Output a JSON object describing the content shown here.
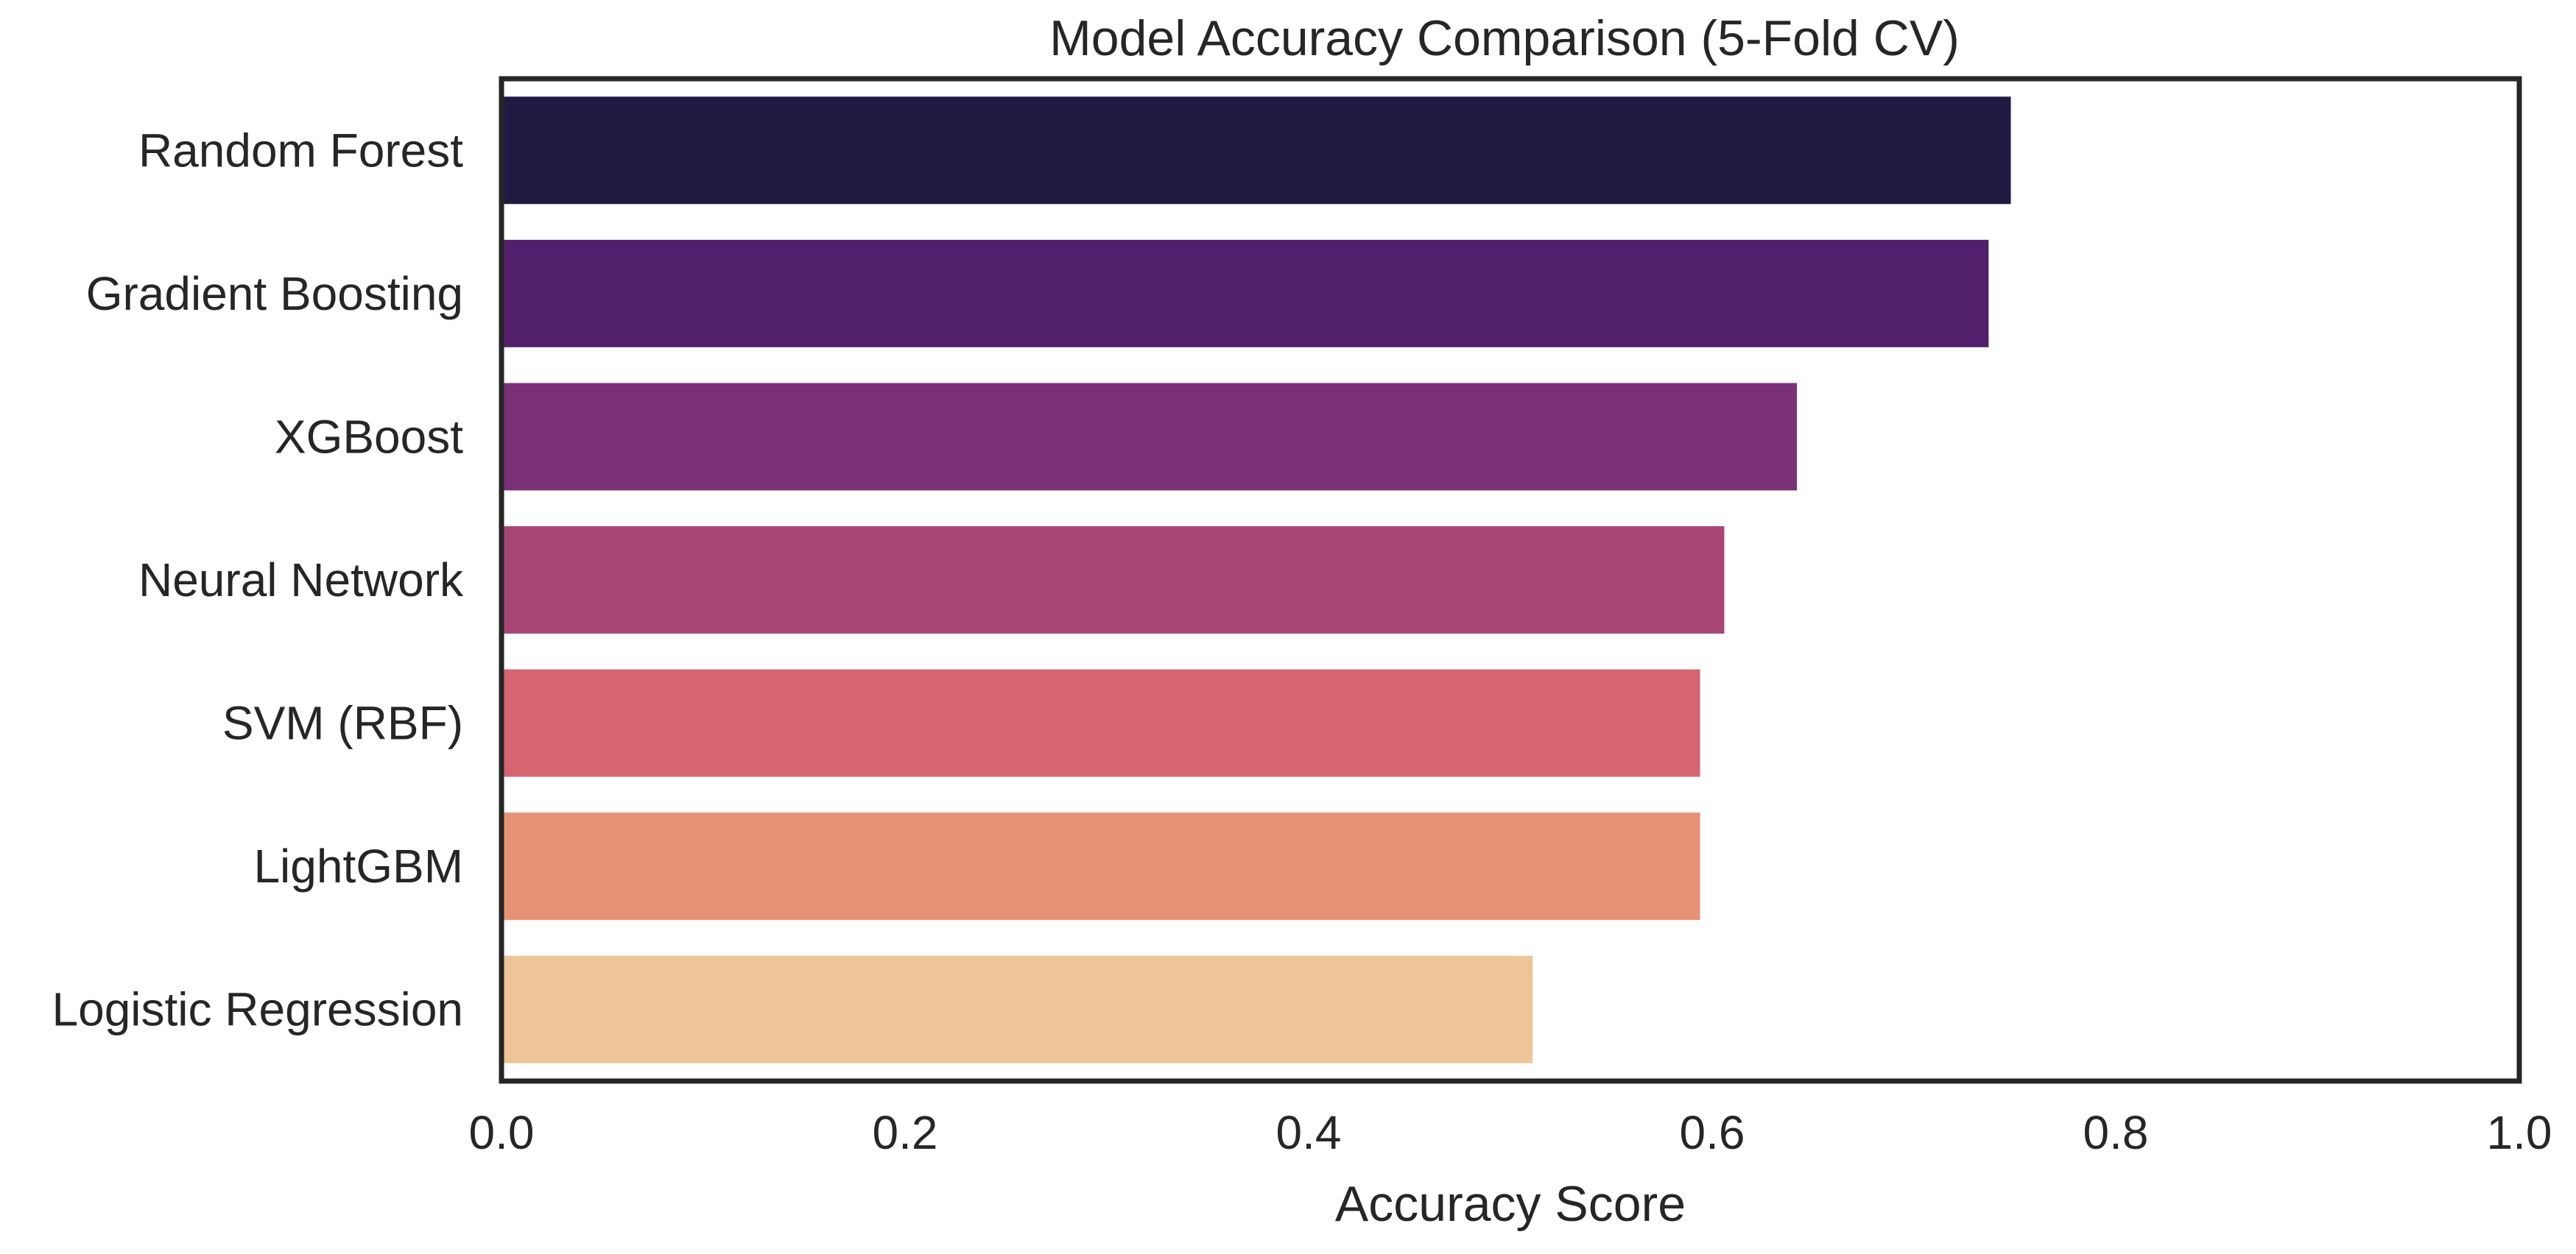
{
  "chart_data": {
    "type": "bar",
    "orientation": "horizontal",
    "title": "Model Accuracy Comparison (5-Fold CV)",
    "xlabel": "Accuracy Score",
    "ylabel": "",
    "xlim": [
      0,
      1
    ],
    "xticks": [
      0.0,
      0.2,
      0.4,
      0.6,
      0.8,
      1.0
    ],
    "xtick_labels": [
      "0.0",
      "0.2",
      "0.4",
      "0.6",
      "0.8",
      "1.0"
    ],
    "grid": false,
    "legend": "none",
    "categories": [
      "Random Forest",
      "Gradient Boosting",
      "XGBoost",
      "Neural Network",
      "SVM (RBF)",
      "LightGBM",
      "Logistic Regression"
    ],
    "values": [
      0.748,
      0.737,
      0.642,
      0.606,
      0.594,
      0.594,
      0.511
    ],
    "colors": [
      "#221942",
      "#511f6c",
      "#7a3178",
      "#a74675",
      "#d66571",
      "#e79275",
      "#eec596"
    ]
  }
}
